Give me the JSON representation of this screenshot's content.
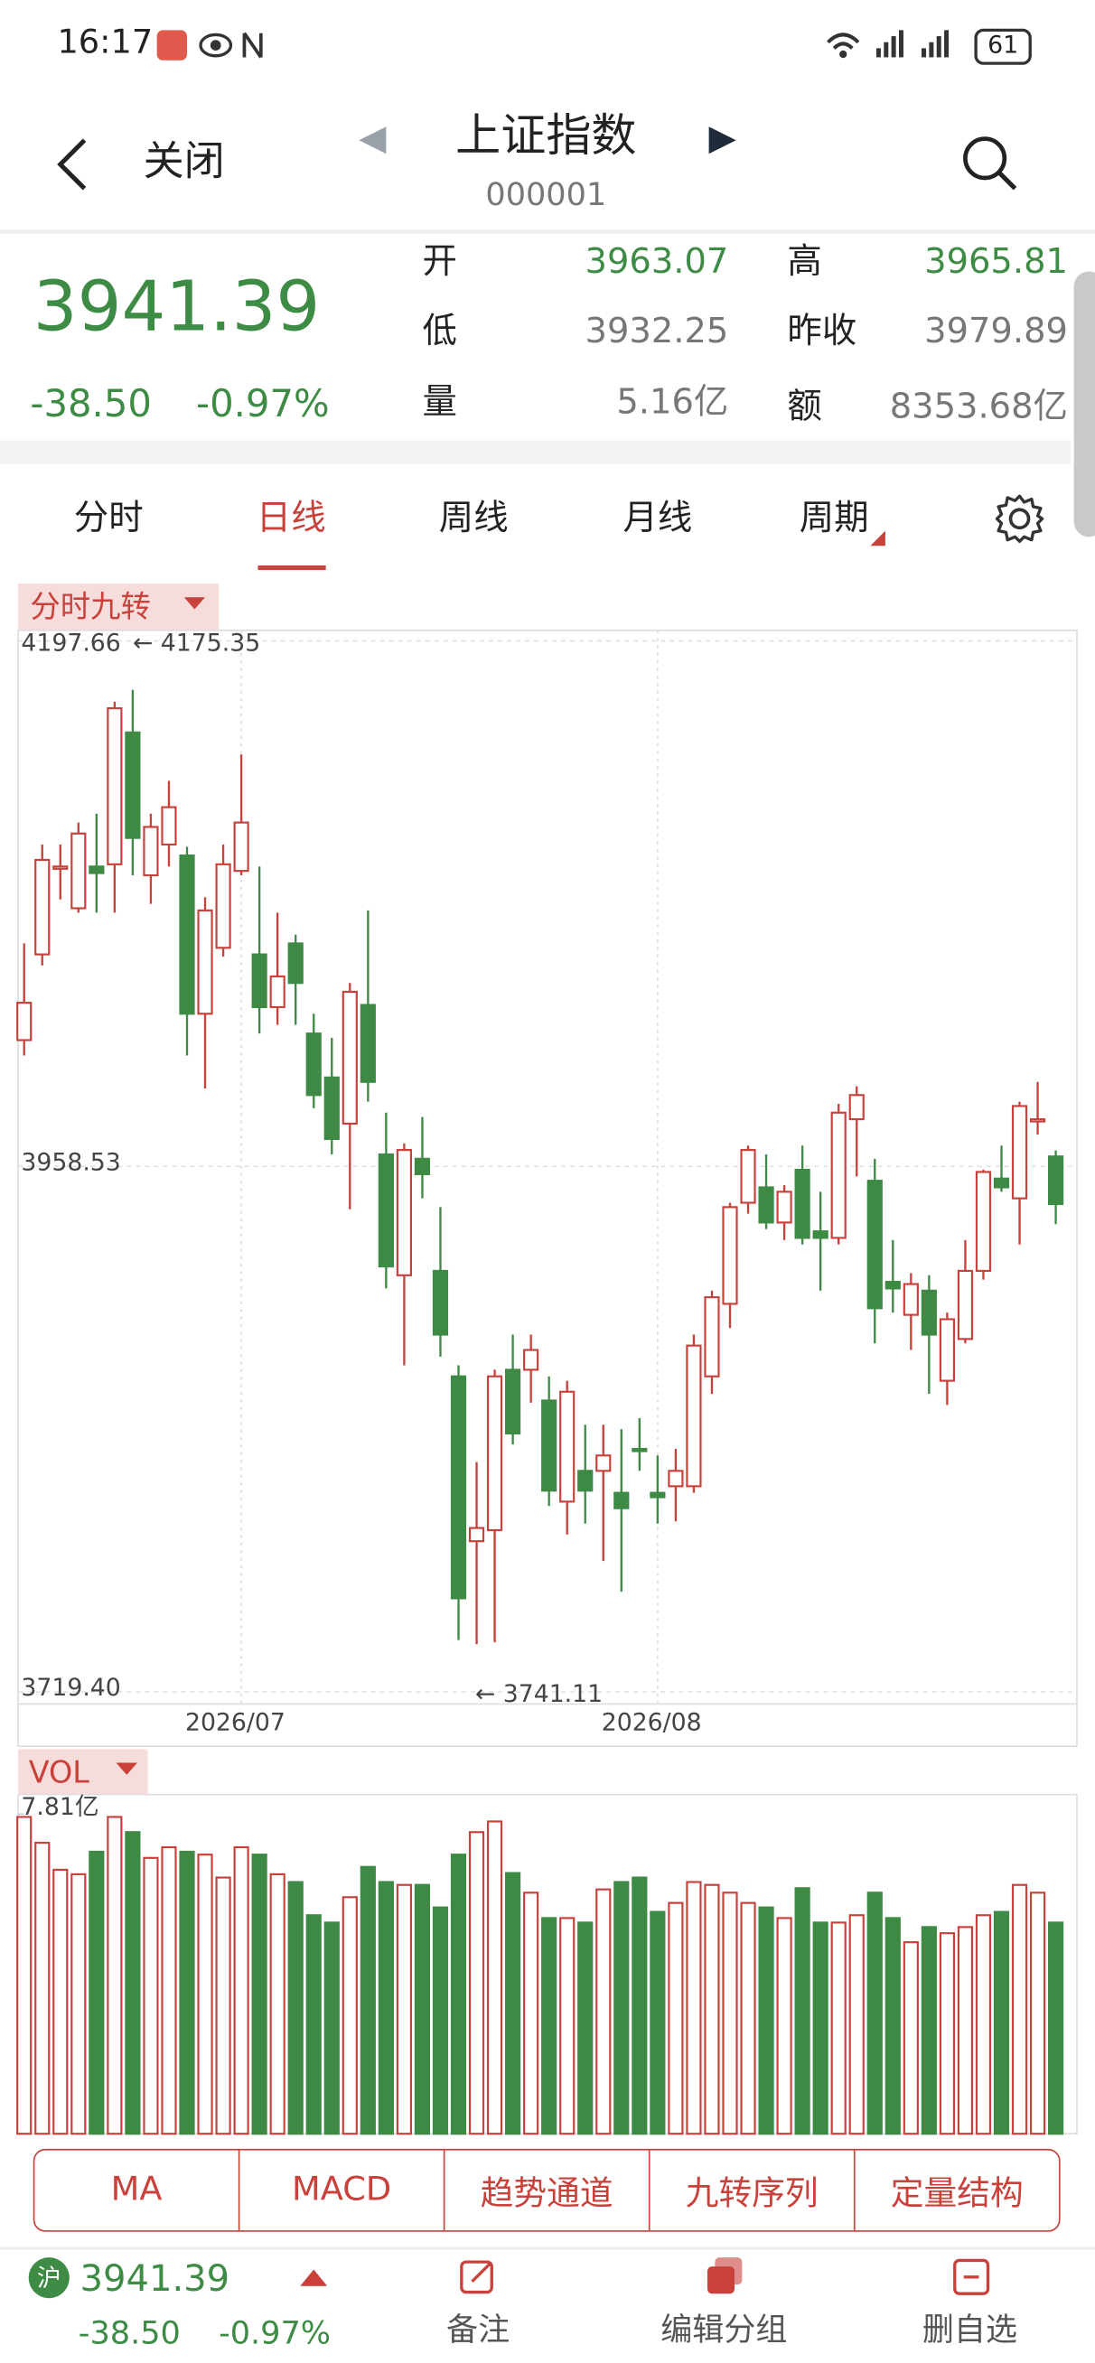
{
  "status_bar": {
    "time": "16:17",
    "battery": "61"
  },
  "header": {
    "close": "关闭",
    "title": "上证指数",
    "code": "000001"
  },
  "quote": {
    "price": "3941.39",
    "change": "-38.50",
    "change_pct": "-0.97%",
    "fields": [
      {
        "label": "开",
        "value": "3963.07"
      },
      {
        "label": "高",
        "value": "3965.81"
      },
      {
        "label": "低",
        "value": "3932.25"
      },
      {
        "label": "昨收",
        "value": "3979.89"
      },
      {
        "label": "量",
        "value": "5.16亿"
      },
      {
        "label": "额",
        "value": "8353.68亿"
      }
    ]
  },
  "tabs": [
    "分时",
    "日线",
    "周线",
    "月线",
    "周期"
  ],
  "chart_data": [
    {
      "type": "candlestick",
      "title": "分时九转",
      "categories": [
        null,
        null,
        null,
        null,
        null,
        null,
        null,
        null,
        null,
        null,
        null,
        null,
        "2026/07",
        null,
        null,
        null,
        null,
        null,
        null,
        null,
        null,
        null,
        null,
        null,
        null,
        null,
        null,
        null,
        null,
        null,
        null,
        null,
        null,
        null,
        null,
        "2026/08",
        null,
        null,
        null,
        null,
        null,
        null,
        null,
        null,
        null,
        null,
        null,
        null,
        null,
        null,
        null,
        null,
        null,
        null,
        null,
        null,
        null,
        null
      ],
      "open": [
        4016,
        4055,
        4094,
        4076,
        4095,
        4096,
        4156,
        4091,
        4105,
        4100,
        4028,
        4058,
        4093,
        4055,
        4031,
        4060,
        4019,
        3999,
        3978,
        4032,
        3964,
        3909,
        3962,
        3911,
        3863,
        3788,
        3793,
        3866,
        3866,
        3852,
        3806,
        3820,
        3820,
        3810,
        3830,
        3810,
        3813,
        3813,
        3863,
        3896,
        3942,
        3949,
        3933,
        3957,
        3929,
        3926,
        3980,
        3952,
        3906,
        3891,
        3902,
        3861,
        3880,
        3911,
        3953,
        3944,
        3979,
        3963.07
      ],
      "high": [
        4060,
        4105,
        4105,
        4115,
        4119,
        4170,
        4175.35,
        4119,
        4134,
        4104,
        4081,
        4105,
        4146,
        4095,
        4074,
        4064,
        4028,
        4017,
        4042,
        4075,
        3983,
        3969,
        3981,
        3940,
        3868,
        3824,
        3866,
        3882,
        3882,
        3863,
        3861,
        3841,
        3841,
        3839,
        3844,
        3827,
        3830,
        3882,
        3902,
        3942,
        3968,
        3964,
        3950,
        3968,
        3947,
        3987,
        3995,
        3962,
        3925,
        3910,
        3909,
        3892,
        3925,
        3957,
        3968,
        3988,
        3997,
        3965.81
      ],
      "low": [
        4009,
        4050,
        4080,
        4074,
        4074,
        4074,
        4091,
        4078,
        4095,
        4009,
        3994,
        4054,
        4091,
        4019,
        4023,
        4023,
        3985,
        3964,
        3939,
        3988,
        3903,
        3868,
        3944,
        3872,
        3743,
        3741.11,
        3742,
        3832,
        3851,
        3804,
        3791,
        3796,
        3779,
        3765,
        3820,
        3796,
        3797,
        3810,
        3855,
        3885,
        3937,
        3930,
        3925,
        3923,
        3902,
        3923,
        3954,
        3878,
        3892,
        3875,
        3855,
        3850,
        3878,
        3907,
        3947,
        3923,
        3973,
        3932.25
      ],
      "close": [
        4033,
        4098,
        4095,
        4110,
        4092,
        4167,
        4108,
        4113,
        4122,
        4028,
        4075,
        4096,
        4115,
        4031,
        4045,
        4042,
        3991,
        3971,
        4038,
        3997,
        3913,
        3966,
        3955,
        3882,
        3762,
        3794,
        3863,
        3837,
        3875,
        3811,
        3856,
        3811,
        3827,
        3803,
        3829,
        3808,
        3820,
        3877,
        3899,
        3940,
        3966,
        3933,
        3947,
        3926,
        3926,
        3983,
        3991,
        3894,
        3903,
        3905,
        3882,
        3889,
        3911,
        3956,
        3949,
        3986,
        3980,
        3941.39
      ],
      "up_color": "#c8413a",
      "down_color": "#3e8a45",
      "ylim": [
        3719.4,
        4197.66
      ],
      "yticks": [
        4197.66,
        3958.53,
        {
          "value": 3719.4,
          "label": "3719.40"
        }
      ],
      "annotations": [
        "← 4175.35",
        "← 3741.11"
      ]
    },
    {
      "type": "bar",
      "title": "VOL",
      "values": [
        7.74,
        7.11,
        6.45,
        6.34,
        6.89,
        7.74,
        7.37,
        6.74,
        7.0,
        6.89,
        6.82,
        6.26,
        7.0,
        6.82,
        6.34,
        6.15,
        5.34,
        5.16,
        5.78,
        6.52,
        6.15,
        6.08,
        6.08,
        5.53,
        6.82,
        7.37,
        7.63,
        6.37,
        5.89,
        5.27,
        5.27,
        5.16,
        5.97,
        6.15,
        6.26,
        5.42,
        5.64,
        6.15,
        6.08,
        5.89,
        5.64,
        5.53,
        5.27,
        6.0,
        5.16,
        5.16,
        5.34,
        5.89,
        5.27,
        4.68,
        5.05,
        4.9,
        5.05,
        5.34,
        5.42,
        6.08,
        5.89,
        5.16
      ],
      "ylim": [
        0,
        7.81
      ],
      "yticks": [
        0,
        {
          "value": 7.81,
          "label": "7.81亿"
        }
      ]
    }
  ],
  "indicator_buttons": [
    "MA",
    "MACD",
    "趋势通道",
    "九转序列",
    "定量结构"
  ],
  "footer": {
    "market": "沪",
    "price": "3941.39",
    "change": "-38.50",
    "change_pct": "-0.97%",
    "actions": [
      "备注",
      "编辑分组",
      "删自选"
    ]
  }
}
